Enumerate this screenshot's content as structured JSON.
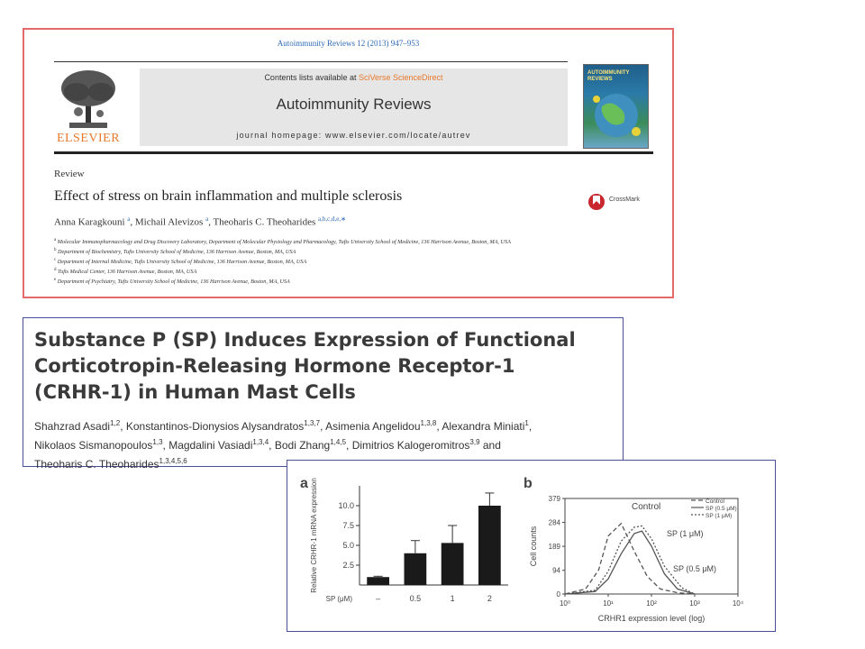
{
  "panel_elsevier": {
    "citation": "Autoimmunity Reviews 12 (2013) 947–953",
    "publisher": "ELSEVIER",
    "contents_prefix": "Contents lists available at ",
    "contents_link": "SciVerse ScienceDirect",
    "journal_name": "Autoimmunity Reviews",
    "homepage": "journal homepage: www.elsevier.com/locate/autrev",
    "cover_title_1": "AUTOIMMUNITY",
    "cover_title_2": "REVIEWS",
    "article_type": "Review",
    "article_title": "Effect of stress on brain inflammation and multiple sclerosis",
    "crossmark": "CrossMark",
    "authors": [
      {
        "name": "Anna Karagkouni ",
        "sup": "a",
        "sep": ", "
      },
      {
        "name": "Michail Alevizos ",
        "sup": "a",
        "sep": ", "
      },
      {
        "name": "Theoharis C. Theoharides ",
        "sup": "a,b,c,d,e,∗",
        "sep": ""
      }
    ],
    "affiliations": [
      {
        "mark": "a",
        "text": " Molecular Immunopharmacology and Drug Discovery Laboratory, Department of Molecular Physiology and Pharmacology, Tufts University School of Medicine, 136 Harrison Avenue, Boston, MA, USA"
      },
      {
        "mark": "b",
        "text": " Department of Biochemistry, Tufts University School of Medicine, 136 Harrison Avenue, Boston, MA, USA"
      },
      {
        "mark": "c",
        "text": " Department of Internal Medicine, Tufts University School of Medicine, 136 Harrison Avenue, Boston, MA, USA"
      },
      {
        "mark": "d",
        "text": " Tufts Medical Center, 136 Harrison Avenue, Boston, MA, USA"
      },
      {
        "mark": "e",
        "text": " Department of Psychiatry, Tufts University School of Medicine, 136 Harrison Avenue, Boston, MA, USA"
      }
    ]
  },
  "panel_sp": {
    "title_lines": [
      "Substance P (SP) Induces Expression of Functional",
      "Corticotropin-Releasing Hormone Receptor-1",
      "(CRHR-1) in Human Mast Cells"
    ],
    "authors": [
      {
        "name": "Shahzrad Asadi",
        "sup": "1,2",
        "sep": ", "
      },
      {
        "name": "Konstantinos-Dionysios Alysandratos",
        "sup": "1,3,7",
        "sep": ", "
      },
      {
        "name": "Asimenia Angelidou",
        "sup": "1,3,8",
        "sep": ", "
      },
      {
        "name": "Alexandra Miniati",
        "sup": "1",
        "sep": ", "
      },
      {
        "name": "Nikolaos Sismanopoulos",
        "sup": "1,3",
        "sep": ", "
      },
      {
        "name": "Magdalini Vasiadi",
        "sup": "1,3,4",
        "sep": ", "
      },
      {
        "name": "Bodi Zhang",
        "sup": "1,4,5",
        "sep": ", "
      },
      {
        "name": "Dimitrios Kalogeromitros",
        "sup": "3,9",
        "sep": " and "
      },
      {
        "name": "Theoharis C. Theoharides",
        "sup": "1,3,4,5,6",
        "sep": ""
      }
    ]
  },
  "chart_data": [
    {
      "panel_label": "a",
      "type": "bar",
      "ylabel": "Relative CRHR-1 mRNA expression",
      "xlabel": "SP (μM)",
      "categories": [
        "–",
        "0.5",
        "1",
        "2"
      ],
      "values": [
        1.0,
        4.0,
        5.3,
        10.0
      ],
      "errors": [
        0.1,
        1.6,
        2.2,
        1.6
      ],
      "yticks": [
        "2.5",
        "5.0",
        "7.5",
        "10.0"
      ],
      "ylim": [
        0,
        12.5
      ],
      "bar_color": "#1a1a1a"
    },
    {
      "panel_label": "b",
      "type": "line",
      "ylabel": "Cell counts",
      "xlabel": "CRHR1 expression level (log)",
      "x_scale": "log",
      "xlim": [
        1,
        10000
      ],
      "ylim": [
        0,
        379
      ],
      "yticks": [
        "379",
        "284",
        "189",
        "94",
        "0"
      ],
      "xticks": [
        "10⁰",
        "10¹",
        "10²",
        "10³",
        "10⁴"
      ],
      "legend_position": "top-right",
      "legend": [
        "Control",
        "SP (0.5 μM)",
        "SP (1 μM)"
      ],
      "annotations": [
        "Control",
        "SP (1 μM)",
        "SP (0.5 μM)"
      ],
      "series": [
        {
          "name": "Control",
          "style": "dashed",
          "x": [
            1,
            3,
            6,
            10,
            20,
            40,
            80,
            160,
            400,
            1000
          ],
          "y": [
            0,
            20,
            95,
            230,
            280,
            170,
            70,
            20,
            5,
            0
          ]
        },
        {
          "name": "SP (0.5 μM)",
          "style": "solid",
          "x": [
            1,
            5,
            10,
            20,
            40,
            60,
            100,
            200,
            400,
            1000
          ],
          "y": [
            0,
            10,
            60,
            160,
            240,
            250,
            190,
            80,
            20,
            0
          ]
        },
        {
          "name": "SP (1 μM)",
          "style": "dotted",
          "x": [
            1,
            5,
            10,
            20,
            40,
            60,
            100,
            200,
            500,
            1000
          ],
          "y": [
            0,
            15,
            90,
            210,
            265,
            270,
            220,
            110,
            25,
            0
          ]
        }
      ]
    }
  ]
}
